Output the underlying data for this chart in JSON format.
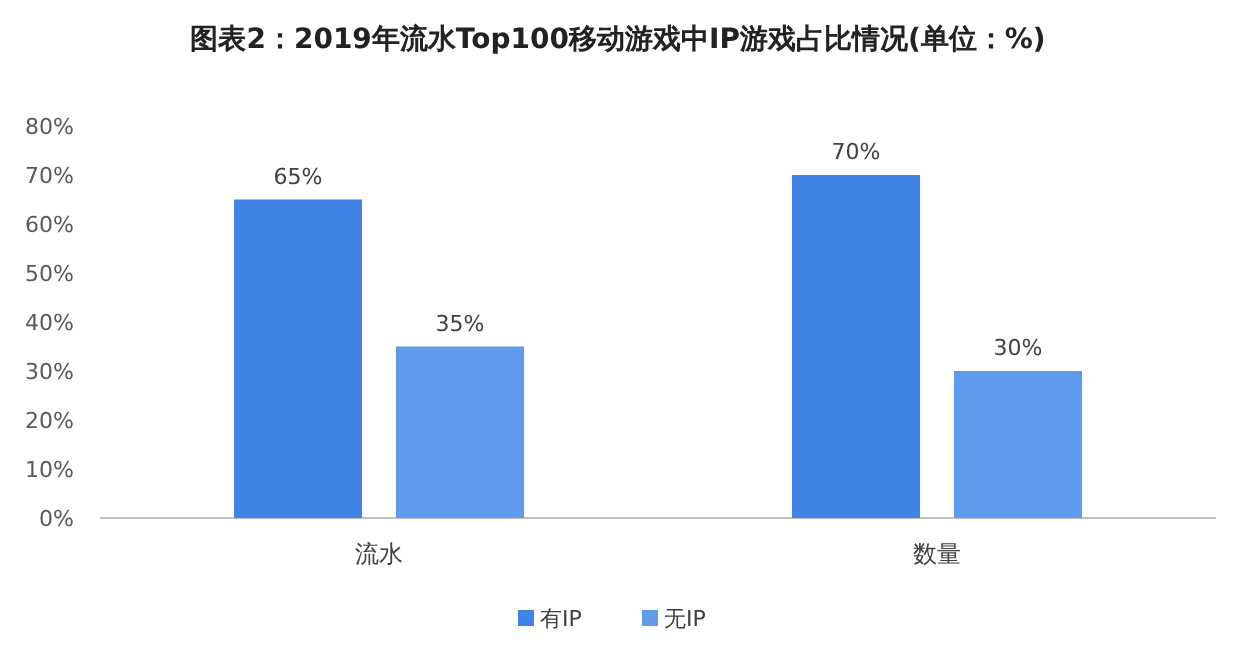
{
  "chart_data": {
    "type": "bar",
    "title": "图表2：2019年流水Top100移动游戏中IP游戏占比情况(单位：%)",
    "categories": [
      "流水",
      "数量"
    ],
    "series": [
      {
        "name": "有IP",
        "color": "#3f84e5",
        "values": [
          65,
          70
        ],
        "value_labels": [
          "65%",
          "70%"
        ]
      },
      {
        "name": "无IP",
        "color": "#5e9bec",
        "values": [
          35,
          30
        ],
        "value_labels": [
          "35%",
          "30%"
        ]
      }
    ],
    "ylim": [
      0,
      80
    ],
    "yticks": [
      {
        "value": 0,
        "label": "0%"
      },
      {
        "value": 10,
        "label": "10%"
      },
      {
        "value": 20,
        "label": "20%"
      },
      {
        "value": 30,
        "label": "30%"
      },
      {
        "value": 40,
        "label": "40%"
      },
      {
        "value": 50,
        "label": "50%"
      },
      {
        "value": 60,
        "label": "60%"
      },
      {
        "value": 70,
        "label": "70%"
      },
      {
        "value": 80,
        "label": "80%"
      }
    ],
    "legend": "bottom",
    "grid": false
  }
}
